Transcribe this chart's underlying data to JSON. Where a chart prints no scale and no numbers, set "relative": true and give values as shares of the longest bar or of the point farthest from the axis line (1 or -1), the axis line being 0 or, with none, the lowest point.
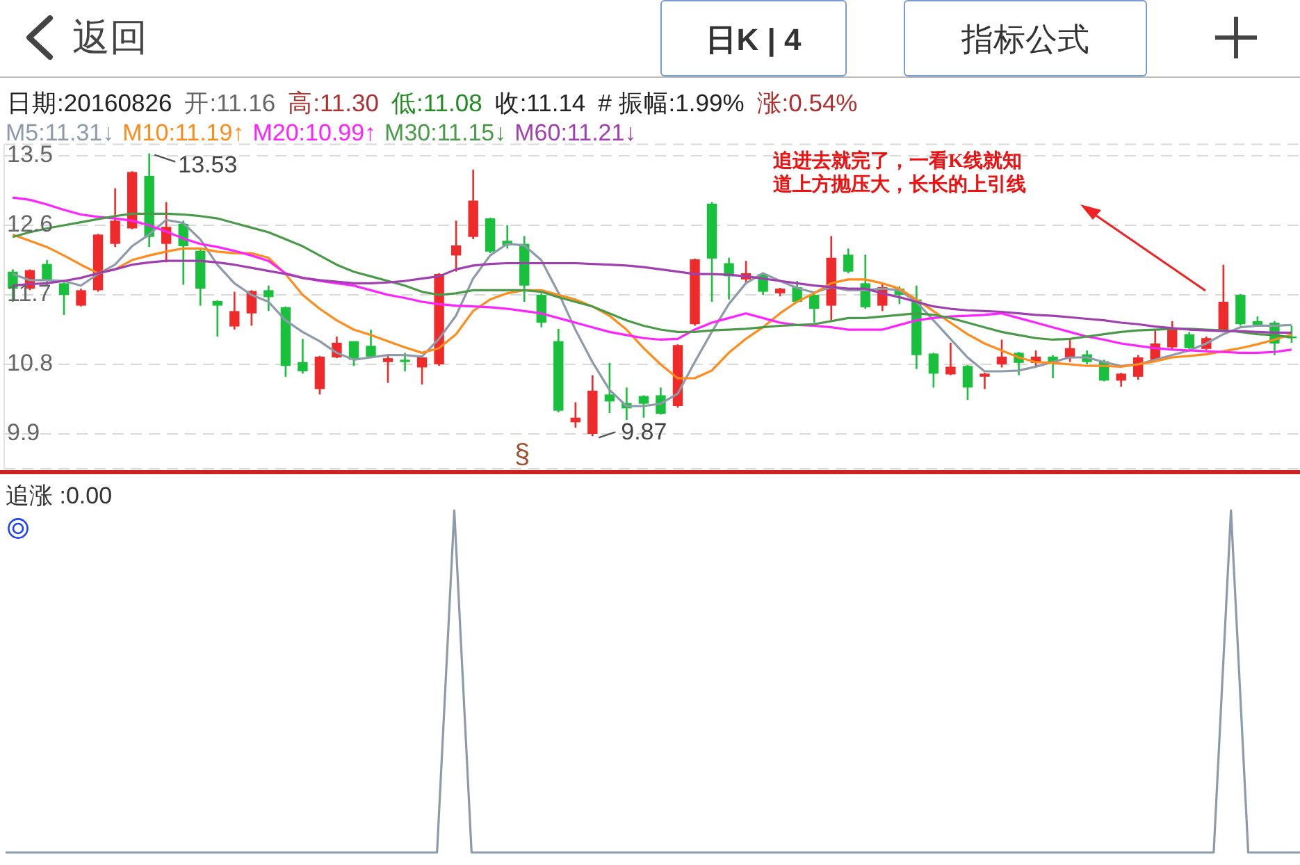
{
  "chart_data": [
    {
      "type": "candlestick",
      "tick_labels": "y",
      "grid": "y",
      "legend": "top left",
      "ylim": [
        9.45,
        13.65
      ],
      "yticks": [
        9.9,
        10.8,
        11.7,
        12.6,
        13.5
      ],
      "annotations": [
        "返回",
        "日K | 4",
        "指标公式",
        "日期:20160826",
        "开:11.16",
        "高:11.30",
        "低:11.08",
        "收:11.14",
        "# 振幅:1.99%",
        "涨:0.54%",
        "13.53",
        "9.87",
        "§",
        "追进去就完了，一看K线就知道上方抛压大，长长的上引线"
      ],
      "categories": [
        null,
        null,
        null,
        null,
        null,
        null,
        null,
        null,
        null,
        null,
        null,
        null,
        null,
        null,
        null,
        null,
        null,
        null,
        null,
        null,
        null,
        null,
        null,
        null,
        null,
        null,
        null,
        null,
        null,
        null,
        null,
        null,
        null,
        null,
        null,
        null,
        null,
        null,
        null,
        null,
        null,
        null,
        null,
        null,
        null,
        null,
        null,
        null,
        null,
        null,
        null,
        null,
        null,
        null,
        null,
        null,
        null,
        null,
        null,
        null,
        null,
        null,
        null,
        null,
        null,
        null,
        null,
        null,
        null,
        null,
        null,
        null,
        null,
        null,
        null,
        null
      ],
      "ohlc": [
        [
          12.0,
          12.03,
          11.61,
          11.78
        ],
        [
          11.78,
          12.03,
          11.76,
          12.02
        ],
        [
          12.1,
          12.15,
          11.82,
          11.88
        ],
        [
          11.85,
          11.86,
          11.44,
          11.7
        ],
        [
          11.56,
          11.78,
          11.55,
          11.76
        ],
        [
          11.76,
          12.49,
          11.74,
          12.48
        ],
        [
          12.36,
          13.08,
          12.32,
          12.66
        ],
        [
          12.56,
          13.3,
          12.55,
          13.29
        ],
        [
          13.24,
          13.53,
          12.32,
          12.45
        ],
        [
          12.36,
          12.9,
          12.12,
          12.58
        ],
        [
          12.62,
          12.66,
          11.83,
          12.33
        ],
        [
          12.27,
          12.3,
          11.56,
          11.78
        ],
        [
          11.62,
          11.63,
          11.16,
          11.56
        ],
        [
          11.29,
          11.74,
          11.25,
          11.49
        ],
        [
          11.46,
          11.76,
          11.3,
          11.75
        ],
        [
          11.76,
          11.82,
          11.49,
          11.67
        ],
        [
          11.54,
          11.55,
          10.64,
          10.78
        ],
        [
          10.83,
          11.13,
          10.68,
          10.71
        ],
        [
          10.48,
          10.91,
          10.41,
          10.9
        ],
        [
          10.89,
          11.16,
          10.88,
          11.08
        ],
        [
          11.1,
          11.1,
          10.78,
          10.86
        ],
        [
          11.04,
          11.25,
          10.88,
          10.9
        ],
        [
          10.83,
          10.92,
          10.56,
          10.88
        ],
        [
          10.86,
          10.95,
          10.71,
          10.83
        ],
        [
          10.76,
          10.9,
          10.54,
          10.89
        ],
        [
          10.8,
          11.98,
          10.78,
          11.97
        ],
        [
          12.21,
          12.66,
          12.0,
          12.34
        ],
        [
          12.45,
          13.32,
          12.42,
          12.92
        ],
        [
          12.69,
          12.7,
          12.24,
          12.26
        ],
        [
          12.4,
          12.6,
          12.3,
          12.34
        ],
        [
          12.36,
          12.46,
          11.61,
          11.82
        ],
        [
          11.7,
          11.72,
          11.28,
          11.34
        ],
        [
          11.1,
          11.26,
          10.18,
          10.2
        ],
        [
          10.05,
          10.31,
          9.98,
          10.11
        ],
        [
          9.9,
          10.66,
          9.87,
          10.46
        ],
        [
          10.41,
          10.82,
          10.17,
          10.32
        ],
        [
          10.3,
          10.5,
          10.08,
          10.23
        ],
        [
          10.39,
          10.4,
          10.11,
          10.29
        ],
        [
          10.4,
          10.5,
          10.15,
          10.16
        ],
        [
          10.26,
          11.06,
          10.24,
          11.05
        ],
        [
          11.32,
          12.17,
          11.3,
          12.16
        ],
        [
          12.88,
          12.9,
          11.61,
          12.17
        ],
        [
          12.11,
          12.18,
          11.64,
          11.94
        ],
        [
          11.9,
          12.14,
          11.85,
          11.98
        ],
        [
          11.97,
          11.98,
          11.7,
          11.74
        ],
        [
          11.72,
          11.79,
          11.68,
          11.78
        ],
        [
          11.8,
          11.88,
          11.6,
          11.61
        ],
        [
          11.7,
          11.72,
          11.34,
          11.52
        ],
        [
          11.56,
          12.46,
          11.37,
          12.18
        ],
        [
          12.22,
          12.3,
          11.98,
          12.0
        ],
        [
          11.85,
          12.22,
          11.52,
          11.54
        ],
        [
          11.56,
          11.86,
          11.49,
          11.8
        ],
        [
          11.78,
          11.81,
          11.58,
          11.7
        ],
        [
          11.64,
          11.82,
          10.74,
          10.92
        ],
        [
          10.94,
          10.95,
          10.5,
          10.68
        ],
        [
          10.67,
          11.08,
          10.66,
          10.77
        ],
        [
          10.78,
          10.79,
          10.34,
          10.5
        ],
        [
          10.64,
          10.69,
          10.48,
          10.68
        ],
        [
          10.8,
          11.12,
          10.76,
          10.9
        ],
        [
          10.95,
          10.96,
          10.66,
          10.82
        ],
        [
          10.82,
          10.98,
          10.77,
          10.9
        ],
        [
          10.9,
          10.92,
          10.62,
          10.82
        ],
        [
          10.89,
          11.13,
          10.83,
          11.01
        ],
        [
          10.93,
          10.98,
          10.8,
          10.83
        ],
        [
          10.84,
          10.86,
          10.58,
          10.59
        ],
        [
          10.59,
          10.69,
          10.51,
          10.68
        ],
        [
          10.64,
          10.92,
          10.6,
          10.89
        ],
        [
          10.86,
          11.25,
          10.85,
          11.07
        ],
        [
          11.02,
          11.36,
          11.0,
          11.25
        ],
        [
          11.19,
          11.22,
          11.0,
          11.01
        ],
        [
          11.0,
          11.16,
          10.99,
          11.14
        ],
        [
          11.24,
          12.09,
          11.22,
          11.61
        ],
        [
          11.7,
          11.71,
          11.3,
          11.32
        ],
        [
          11.36,
          11.42,
          11.29,
          11.31
        ],
        [
          11.34,
          11.36,
          10.92,
          11.07
        ],
        [
          11.16,
          11.3,
          11.08,
          11.14
        ]
      ],
      "series": [
        {
          "type": "line",
          "name": "M5:11.31↓",
          "color": "#8c9aaa",
          "values": [
            11.97,
            11.89,
            11.89,
            11.88,
            11.82,
            11.97,
            12.09,
            12.33,
            12.48,
            12.67,
            12.63,
            12.42,
            12.09,
            11.85,
            11.7,
            11.61,
            11.37,
            11.22,
            11.1,
            10.95,
            10.86,
            10.89,
            10.92,
            10.92,
            10.9,
            11.13,
            11.43,
            11.91,
            12.21,
            12.36,
            12.34,
            12.15,
            11.73,
            11.25,
            10.83,
            10.47,
            10.26,
            10.26,
            10.29,
            10.42,
            10.83,
            11.22,
            11.58,
            11.85,
            11.98,
            11.88,
            11.79,
            11.73,
            11.8,
            11.76,
            11.76,
            11.78,
            11.76,
            11.61,
            11.37,
            11.13,
            10.89,
            10.71,
            10.71,
            10.72,
            10.77,
            10.83,
            10.89,
            10.89,
            10.83,
            10.78,
            10.8,
            10.86,
            10.92,
            10.98,
            11.07,
            11.19,
            11.28,
            11.3,
            11.3,
            11.31
          ]
        },
        {
          "type": "line",
          "name": "M10:11.19↑",
          "color": "#ff8c1a",
          "values": [
            12.48,
            12.4,
            12.32,
            12.21,
            12.09,
            11.98,
            12.03,
            12.15,
            12.21,
            12.26,
            12.3,
            12.3,
            12.26,
            12.24,
            12.24,
            12.18,
            11.97,
            11.7,
            11.52,
            11.37,
            11.25,
            11.18,
            11.1,
            11.02,
            10.95,
            11.01,
            11.19,
            11.49,
            11.64,
            11.72,
            11.76,
            11.76,
            11.7,
            11.64,
            11.55,
            11.43,
            11.25,
            11.01,
            10.8,
            10.62,
            10.62,
            10.72,
            10.95,
            11.13,
            11.28,
            11.46,
            11.61,
            11.72,
            11.85,
            11.9,
            11.9,
            11.85,
            11.78,
            11.64,
            11.49,
            11.34,
            11.19,
            11.07,
            10.98,
            10.89,
            10.83,
            10.82,
            10.8,
            10.78,
            10.78,
            10.77,
            10.8,
            10.84,
            10.89,
            10.91,
            10.93,
            10.97,
            11.01,
            11.06,
            11.12,
            11.19
          ]
        },
        {
          "type": "line",
          "name": "M20:10.99↑",
          "color": "#ff22ff",
          "values": [
            12.96,
            12.93,
            12.87,
            12.8,
            12.74,
            12.71,
            12.69,
            12.66,
            12.6,
            12.52,
            12.43,
            12.36,
            12.32,
            12.27,
            12.21,
            12.14,
            11.98,
            11.92,
            11.88,
            11.85,
            11.82,
            11.76,
            11.7,
            11.66,
            11.61,
            11.58,
            11.56,
            11.55,
            11.54,
            11.52,
            11.49,
            11.46,
            11.4,
            11.34,
            11.28,
            11.22,
            11.18,
            11.14,
            11.12,
            11.13,
            11.25,
            11.34,
            11.4,
            11.46,
            11.4,
            11.34,
            11.31,
            11.3,
            11.28,
            11.25,
            11.25,
            11.25,
            11.31,
            11.37,
            11.4,
            11.42,
            11.43,
            11.44,
            11.46,
            11.4,
            11.34,
            11.28,
            11.22,
            11.16,
            11.12,
            11.07,
            11.04,
            11.01,
            10.99,
            10.98,
            10.97,
            10.96,
            10.95,
            10.95,
            10.96,
            10.99
          ]
        },
        {
          "type": "line",
          "name": "M30:11.15↓",
          "color": "#4a9a4a",
          "values": [
            12.45,
            12.51,
            12.56,
            12.6,
            12.64,
            12.68,
            12.72,
            12.75,
            12.75,
            12.75,
            12.74,
            12.72,
            12.69,
            12.63,
            12.57,
            12.51,
            12.42,
            12.33,
            12.21,
            12.09,
            12.0,
            11.94,
            11.88,
            11.82,
            11.74,
            11.7,
            11.72,
            11.76,
            11.76,
            11.76,
            11.76,
            11.74,
            11.67,
            11.61,
            11.55,
            11.46,
            11.37,
            11.3,
            11.25,
            11.22,
            11.22,
            11.24,
            11.25,
            11.26,
            11.28,
            11.3,
            11.31,
            11.32,
            11.36,
            11.4,
            11.4,
            11.42,
            11.44,
            11.46,
            11.44,
            11.4,
            11.34,
            11.28,
            11.22,
            11.18,
            11.14,
            11.12,
            11.13,
            11.16,
            11.19,
            11.22,
            11.24,
            11.25,
            11.26,
            11.26,
            11.25,
            11.24,
            11.22,
            11.19,
            11.18,
            11.15
          ]
        },
        {
          "type": "line",
          "name": "M60:11.21↓",
          "color": "#a040b0",
          "values": [
            11.82,
            11.84,
            11.85,
            11.88,
            11.92,
            11.98,
            12.03,
            12.09,
            12.12,
            12.14,
            12.14,
            12.14,
            12.12,
            12.09,
            12.05,
            12.01,
            11.97,
            11.92,
            11.89,
            11.87,
            11.85,
            11.85,
            11.86,
            11.88,
            11.91,
            11.94,
            12.03,
            12.08,
            12.1,
            12.11,
            12.11,
            12.11,
            12.11,
            12.11,
            12.1,
            12.09,
            12.08,
            12.06,
            12.03,
            12.0,
            11.97,
            11.97,
            11.96,
            11.94,
            11.91,
            11.88,
            11.85,
            11.82,
            11.8,
            11.78,
            11.78,
            11.72,
            11.67,
            11.61,
            11.55,
            11.52,
            11.5,
            11.49,
            11.48,
            11.46,
            11.44,
            11.43,
            11.41,
            11.39,
            11.37,
            11.34,
            11.32,
            11.29,
            11.27,
            11.25,
            11.24,
            11.23,
            11.23,
            11.22,
            11.21,
            11.21
          ]
        }
      ]
    },
    {
      "type": "line",
      "title": "追涨 :0.00",
      "relative": true,
      "tick_labels": false,
      "categories": [
        null,
        null,
        null,
        null,
        null,
        null,
        null,
        null,
        null,
        null,
        null,
        null,
        null,
        null,
        null,
        null,
        null,
        null,
        null,
        null,
        null,
        null,
        null,
        null,
        null,
        null,
        null,
        null,
        null,
        null,
        null,
        null,
        null,
        null,
        null,
        null,
        null,
        null,
        null,
        null,
        null,
        null,
        null,
        null,
        null,
        null,
        null,
        null,
        null,
        null,
        null,
        null,
        null,
        null,
        null,
        null,
        null,
        null,
        null,
        null,
        null,
        null,
        null,
        null,
        null,
        null,
        null,
        null,
        null,
        null,
        null,
        null,
        null,
        null,
        null,
        null
      ],
      "series": [
        {
          "color": "#8c9aaa",
          "values": [
            0,
            0,
            0,
            0,
            0,
            0,
            0,
            0,
            0,
            0,
            0,
            0,
            0,
            0,
            0,
            0,
            0,
            0,
            0,
            0,
            0,
            0,
            0,
            0,
            0,
            0,
            1,
            0,
            0,
            0,
            0,
            0,
            0,
            0,
            0,
            0,
            0,
            0,
            0,
            0,
            0,
            0,
            0,
            0,
            0,
            0,
            0,
            0,
            0,
            0,
            0,
            0,
            0,
            0,
            0,
            0,
            0,
            0,
            0,
            0,
            0,
            0,
            0,
            0,
            0,
            0,
            0,
            0,
            0,
            0,
            0,
            1,
            0,
            0,
            0,
            0
          ]
        }
      ]
    }
  ]
}
